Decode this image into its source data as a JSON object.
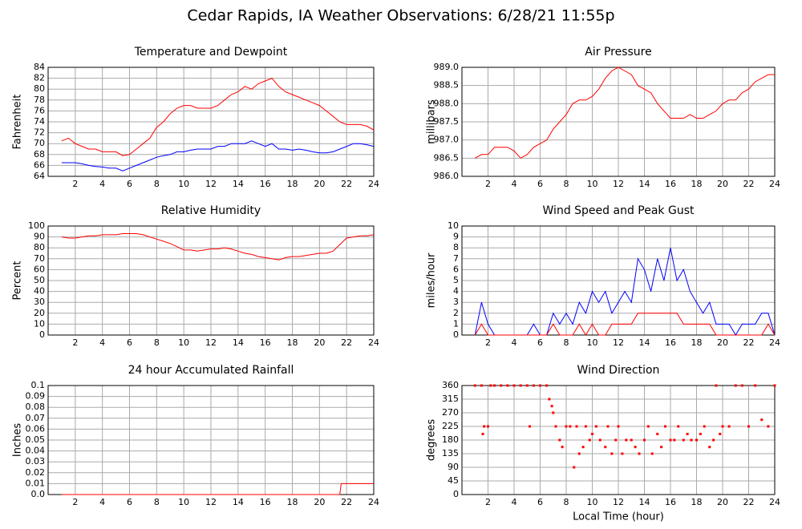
{
  "title": "Cedar Rapids, IA Weather Observations: 6/28/21 11:55p",
  "chart_data": [
    {
      "type": "line",
      "title": "Temperature and Dewpoint",
      "ylabel": "Fahrenheit",
      "x": [
        1,
        1.5,
        2,
        2.5,
        3,
        3.5,
        4,
        4.5,
        5,
        5.5,
        6,
        6.5,
        7,
        7.5,
        8,
        8.5,
        9,
        9.5,
        10,
        10.5,
        11,
        11.5,
        12,
        12.5,
        13,
        13.5,
        14,
        14.5,
        15,
        15.5,
        16,
        16.5,
        17,
        17.5,
        18,
        18.5,
        19,
        19.5,
        20,
        20.5,
        21,
        21.5,
        22,
        22.5,
        23,
        23.5,
        24
      ],
      "series": [
        {
          "color": "#ff0000",
          "values": [
            70.5,
            71,
            70,
            69.5,
            69,
            69,
            68.5,
            68.5,
            68.5,
            67.8,
            68,
            69,
            70,
            71,
            73,
            74,
            75.5,
            76.5,
            77,
            77,
            76.5,
            76.5,
            76.5,
            77,
            78,
            79,
            79.5,
            80.5,
            80,
            81,
            81.5,
            82,
            80.5,
            79.5,
            79,
            78.5,
            78,
            77.5,
            77,
            76,
            75,
            74,
            73.5,
            73.5,
            73.5,
            73.2,
            72.5
          ]
        },
        {
          "color": "#0000ff",
          "values": [
            66.5,
            66.5,
            66.5,
            66.3,
            66,
            65.8,
            65.7,
            65.5,
            65.5,
            65,
            65.5,
            66,
            66.5,
            67,
            67.5,
            67.8,
            68,
            68.5,
            68.5,
            68.8,
            69,
            69,
            69,
            69.5,
            69.5,
            70,
            70,
            70,
            70.5,
            70,
            69.5,
            70,
            69,
            69,
            68.8,
            69,
            68.8,
            68.5,
            68.3,
            68.3,
            68.5,
            69,
            69.5,
            70,
            70,
            69.8,
            69.5
          ]
        }
      ],
      "xlim": [
        0,
        24
      ],
      "xticks": [
        2,
        4,
        6,
        8,
        10,
        12,
        14,
        16,
        18,
        20,
        22,
        24
      ],
      "ylim": [
        64,
        84
      ],
      "yticks": [
        64,
        66,
        68,
        70,
        72,
        74,
        76,
        78,
        80,
        82,
        84
      ],
      "grid": true
    },
    {
      "type": "line",
      "title": "Air Pressure",
      "ylabel": "millibars",
      "x": [
        1,
        1.5,
        2,
        2.5,
        3,
        3.5,
        4,
        4.5,
        5,
        5.5,
        6,
        6.5,
        7,
        7.5,
        8,
        8.5,
        9,
        9.5,
        10,
        10.5,
        11,
        11.5,
        12,
        12.5,
        13,
        13.5,
        14,
        14.5,
        15,
        15.5,
        16,
        16.5,
        17,
        17.5,
        18,
        18.5,
        19,
        19.5,
        20,
        20.5,
        21,
        21.5,
        22,
        22.5,
        23,
        23.5,
        24
      ],
      "series": [
        {
          "color": "#ff0000",
          "values": [
            986.5,
            986.6,
            986.6,
            986.8,
            986.8,
            986.8,
            986.7,
            986.5,
            986.6,
            986.8,
            986.9,
            987.0,
            987.3,
            987.5,
            987.7,
            988.0,
            988.1,
            988.1,
            988.2,
            988.4,
            988.7,
            988.9,
            989.0,
            988.9,
            988.8,
            988.5,
            988.4,
            988.3,
            988.0,
            987.8,
            987.6,
            987.6,
            987.6,
            987.7,
            987.6,
            987.6,
            987.7,
            987.8,
            988.0,
            988.1,
            988.1,
            988.3,
            988.4,
            988.6,
            988.7,
            988.8,
            988.8
          ]
        }
      ],
      "xlim": [
        0,
        24
      ],
      "xticks": [
        2,
        4,
        6,
        8,
        10,
        12,
        14,
        16,
        18,
        20,
        22,
        24
      ],
      "ylim": [
        986,
        989
      ],
      "yticks": [
        {
          "value": 986,
          "label": "986.0"
        },
        986.5,
        {
          "value": 987,
          "label": "987.0"
        },
        987.5,
        {
          "value": 988,
          "label": "988.0"
        },
        988.5,
        {
          "value": 989,
          "label": "989.0"
        }
      ],
      "grid": true
    },
    {
      "type": "line",
      "title": "Relative Humidity",
      "ylabel": "Percent",
      "x": [
        1,
        1.5,
        2,
        2.5,
        3,
        3.5,
        4,
        4.5,
        5,
        5.5,
        6,
        6.5,
        7,
        7.5,
        8,
        8.5,
        9,
        9.5,
        10,
        10.5,
        11,
        11.5,
        12,
        12.5,
        13,
        13.5,
        14,
        14.5,
        15,
        15.5,
        16,
        16.5,
        17,
        17.5,
        18,
        18.5,
        19,
        19.5,
        20,
        20.5,
        21,
        21.5,
        22,
        22.5,
        23,
        23.5,
        24
      ],
      "series": [
        {
          "color": "#ff0000",
          "values": [
            90,
            89,
            89,
            90,
            91,
            91,
            92,
            92,
            92,
            93,
            93,
            93,
            92,
            90,
            88,
            86,
            84,
            81,
            78,
            78,
            77,
            78,
            79,
            79,
            80,
            79,
            77,
            75,
            74,
            72,
            71,
            70,
            69,
            71,
            72,
            72,
            73,
            74,
            75,
            75,
            77,
            83,
            89,
            90,
            91,
            91,
            92
          ]
        }
      ],
      "xlim": [
        0,
        24
      ],
      "xticks": [
        2,
        4,
        6,
        8,
        10,
        12,
        14,
        16,
        18,
        20,
        22,
        24
      ],
      "ylim": [
        0,
        100
      ],
      "yticks": [
        0,
        10,
        20,
        30,
        40,
        50,
        60,
        70,
        80,
        90,
        100
      ],
      "grid": true
    },
    {
      "type": "line",
      "title": "Wind Speed and Peak Gust",
      "ylabel": "miles/hour",
      "x": [
        1,
        1.5,
        2,
        2.5,
        3,
        3.5,
        4,
        4.5,
        5,
        5.5,
        6,
        6.5,
        7,
        7.5,
        8,
        8.5,
        9,
        9.5,
        10,
        10.5,
        11,
        11.5,
        12,
        12.5,
        13,
        13.5,
        14,
        14.5,
        15,
        15.5,
        16,
        16.5,
        17,
        17.5,
        18,
        18.5,
        19,
        19.5,
        20,
        20.5,
        21,
        21.5,
        22,
        22.5,
        23,
        23.5,
        24
      ],
      "series": [
        {
          "color": "#0000ff",
          "values": [
            0,
            3,
            1,
            0,
            0,
            0,
            0,
            0,
            0,
            1,
            0,
            0,
            2,
            1,
            2,
            1,
            3,
            2,
            4,
            3,
            4,
            2,
            3,
            4,
            3,
            7,
            6,
            4,
            7,
            5,
            8,
            5,
            6,
            4,
            3,
            2,
            3,
            1,
            1,
            1,
            0,
            1,
            1,
            1,
            2,
            2,
            0
          ]
        },
        {
          "color": "#ff0000",
          "values": [
            0,
            1,
            0,
            0,
            0,
            0,
            0,
            0,
            0,
            0,
            0,
            0,
            1,
            0,
            0,
            0,
            1,
            0,
            1,
            0,
            0,
            1,
            1,
            1,
            1,
            2,
            2,
            2,
            2,
            2,
            2,
            2,
            1,
            1,
            1,
            1,
            1,
            0,
            0,
            0,
            0,
            0,
            0,
            0,
            0,
            1,
            0
          ]
        }
      ],
      "xlim": [
        0,
        24
      ],
      "xticks": [
        2,
        4,
        6,
        8,
        10,
        12,
        14,
        16,
        18,
        20,
        22,
        24
      ],
      "ylim": [
        0,
        10
      ],
      "yticks": [
        0,
        1,
        2,
        3,
        4,
        5,
        6,
        7,
        8,
        9,
        10
      ],
      "grid": true
    },
    {
      "type": "line",
      "title": "24 hour Accumulated Rainfall",
      "ylabel": "Inches",
      "x": [
        1,
        1.5,
        2,
        2.5,
        3,
        3.5,
        4,
        4.5,
        5,
        5.5,
        6,
        6.5,
        7,
        7.5,
        8,
        8.5,
        9,
        9.5,
        10,
        10.5,
        11,
        11.5,
        12,
        12.5,
        13,
        13.5,
        14,
        14.5,
        15,
        15.5,
        16,
        16.5,
        17,
        17.5,
        18,
        18.5,
        19,
        19.5,
        20,
        20.5,
        21,
        21.5,
        21.6,
        22,
        22.5,
        23,
        23.5,
        24
      ],
      "series": [
        {
          "color": "#ff0000",
          "values": [
            0,
            0,
            0,
            0,
            0,
            0,
            0,
            0,
            0,
            0,
            0,
            0,
            0,
            0,
            0,
            0,
            0,
            0,
            0,
            0,
            0,
            0,
            0,
            0,
            0,
            0,
            0,
            0,
            0,
            0,
            0,
            0,
            0,
            0,
            0,
            0,
            0,
            0,
            0,
            0,
            0,
            0,
            0.01,
            0.01,
            0.01,
            0.01,
            0.01,
            0.01
          ]
        }
      ],
      "xlim": [
        0,
        24
      ],
      "xticks": [
        2,
        4,
        6,
        8,
        10,
        12,
        14,
        16,
        18,
        20,
        22,
        24
      ],
      "ylim": [
        0,
        0.1
      ],
      "yticks": [
        {
          "value": 0,
          "label": "0.0"
        },
        0.01,
        0.02,
        0.03,
        0.04,
        0.05,
        0.06,
        0.07,
        0.08,
        0.09,
        0.1
      ],
      "grid": true
    },
    {
      "type": "scatter",
      "title": "Wind Direction",
      "ylabel": "degrees",
      "xlabel": "Local Time (hour)",
      "color": "#ff0000",
      "x": [
        1,
        1.5,
        1.6,
        1.7,
        2,
        2.2,
        2.5,
        3,
        3.5,
        4,
        4.5,
        5,
        5.2,
        5.5,
        6,
        6.5,
        6.7,
        6.9,
        7,
        7.2,
        7.5,
        7.7,
        8,
        8.3,
        8.6,
        8.8,
        9,
        9.3,
        9.5,
        9.8,
        10,
        10.3,
        10.6,
        11,
        11.2,
        11.5,
        11.8,
        12,
        12.3,
        12.6,
        13,
        13.3,
        13.6,
        14,
        14.3,
        14.6,
        15,
        15.3,
        15.6,
        16,
        16.3,
        16.6,
        17,
        17.3,
        17.6,
        18,
        18.3,
        18.6,
        19,
        19.3,
        19.5,
        19.8,
        20,
        20.5,
        21,
        21.5,
        22,
        22.5,
        23,
        23.5,
        24
      ],
      "values": [
        360,
        360,
        200,
        225,
        225,
        360,
        360,
        360,
        360,
        360,
        360,
        360,
        225,
        360,
        360,
        360,
        315,
        292,
        270,
        225,
        180,
        157,
        225,
        225,
        90,
        225,
        135,
        157,
        225,
        180,
        200,
        225,
        180,
        157,
        225,
        135,
        180,
        225,
        135,
        180,
        180,
        157,
        135,
        180,
        225,
        135,
        200,
        157,
        225,
        180,
        180,
        225,
        180,
        200,
        180,
        180,
        200,
        225,
        157,
        180,
        360,
        200,
        225,
        225,
        360,
        360,
        225,
        360,
        247,
        225,
        360
      ],
      "xlim": [
        0,
        24
      ],
      "xticks": [
        2,
        4,
        6,
        8,
        10,
        12,
        14,
        16,
        18,
        20,
        22,
        24
      ],
      "ylim": [
        0,
        360
      ],
      "yticks": [
        0,
        45,
        90,
        135,
        180,
        225,
        270,
        315,
        360
      ],
      "grid": true
    }
  ]
}
